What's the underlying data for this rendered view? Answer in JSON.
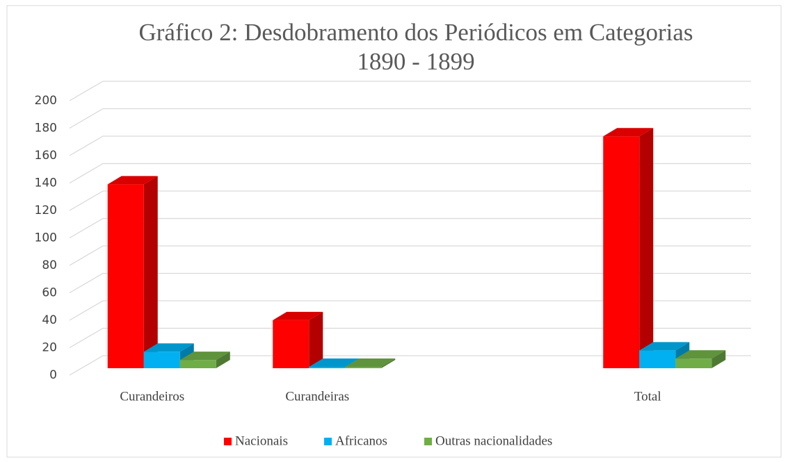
{
  "chart_data": {
    "type": "bar3d",
    "title": "Gráfico 2: Desdobramento dos Periódicos em Categorias",
    "subtitle": "1890 - 1899",
    "categories": [
      "Curandeiros",
      "Curandeiras",
      null,
      "Total"
    ],
    "series": [
      {
        "name": "Nacionais",
        "color": "#ff0000",
        "values": [
          134,
          35,
          null,
          169
        ]
      },
      {
        "name": "Africanos",
        "color": "#00b0f0",
        "values": [
          12,
          1,
          null,
          13
        ]
      },
      {
        "name": "Outras nacionalidades",
        "color": "#70ad47",
        "values": [
          6,
          1,
          null,
          7
        ]
      }
    ],
    "ylim": [
      0,
      200
    ],
    "yticks": [
      0,
      20,
      40,
      60,
      80,
      100,
      120,
      140,
      160,
      180,
      200
    ],
    "grid": true,
    "legend": "bottom"
  }
}
